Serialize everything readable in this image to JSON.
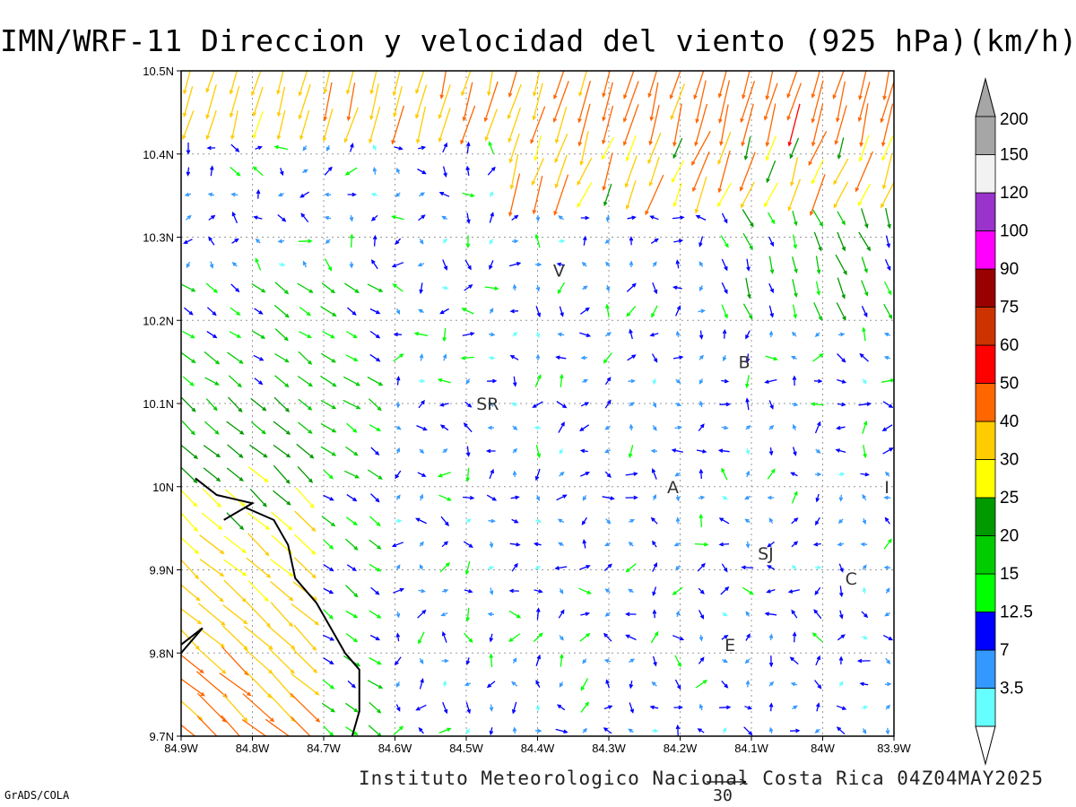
{
  "title": "IMN/WRF-11 Direccion y velocidad del viento (925 hPa)(km/h)",
  "credit": "Instituto Meteorologico Nacional Costa Rica 04Z04MAY2025",
  "software": "GrADS/COLA",
  "reference_vector_label": "30",
  "map": {
    "lon_range": [
      -84.9,
      -83.9
    ],
    "lat_range": [
      9.7,
      10.5
    ],
    "grid": true,
    "x_ticks": [
      "84.9W",
      "84.8W",
      "84.7W",
      "84.6W",
      "84.5W",
      "84.4W",
      "84.3W",
      "84.2W",
      "84.1W",
      "84W",
      "83.9W"
    ],
    "y_ticks": [
      "9.7N",
      "9.8N",
      "9.9N",
      "10N",
      "10.1N",
      "10.2N",
      "10.3N",
      "10.4N",
      "10.5N"
    ],
    "places": [
      {
        "label": "V",
        "lon": -84.37,
        "lat": 10.26
      },
      {
        "label": "SR",
        "lon": -84.47,
        "lat": 10.1
      },
      {
        "label": "B",
        "lon": -84.11,
        "lat": 10.15
      },
      {
        "label": "A",
        "lon": -84.21,
        "lat": 10.0
      },
      {
        "label": "SJ",
        "lon": -84.08,
        "lat": 9.92
      },
      {
        "label": "C",
        "lon": -83.96,
        "lat": 9.89
      },
      {
        "label": "E",
        "lon": -84.13,
        "lat": 9.81
      },
      {
        "label": "I",
        "lon": -83.91,
        "lat": 10.0
      }
    ],
    "coastline": [
      [
        -84.9,
        9.8
      ],
      [
        -84.87,
        9.83
      ],
      [
        -84.9,
        9.81
      ]
    ],
    "coastline_main": [
      [
        -84.88,
        10.01
      ],
      [
        -84.85,
        9.99
      ],
      [
        -84.8,
        9.98
      ],
      [
        -84.84,
        9.96
      ],
      [
        -84.81,
        9.975
      ],
      [
        -84.77,
        9.96
      ],
      [
        -84.75,
        9.93
      ],
      [
        -84.74,
        9.89
      ],
      [
        -84.71,
        9.86
      ],
      [
        -84.67,
        9.8
      ],
      [
        -84.65,
        9.78
      ],
      [
        -84.65,
        9.73
      ],
      [
        -84.66,
        9.7
      ]
    ]
  },
  "legend": {
    "labels": [
      "3.5",
      "7",
      "12.5",
      "15",
      "20",
      "25",
      "30",
      "40",
      "50",
      "60",
      "75",
      "90",
      "100",
      "120",
      "150",
      "200"
    ],
    "colors": [
      "#66ffff",
      "#3399ff",
      "#0000ff",
      "#00ff00",
      "#00cc00",
      "#009900",
      "#ffff00",
      "#ffcc00",
      "#ff6600",
      "#ff0000",
      "#cc3300",
      "#990000",
      "#ff00ff",
      "#9933cc",
      "#f2f2f2",
      "#a6a6a6"
    ]
  },
  "wind_regions": [
    {
      "name": "north-jet",
      "lon": [
        -84.9,
        -83.9
      ],
      "lat": [
        10.42,
        10.5
      ],
      "dir_deg": 255,
      "speed": 35
    },
    {
      "name": "west-coast",
      "lon": [
        -84.9,
        -84.7
      ],
      "lat": [
        9.7,
        10.1
      ],
      "dir_deg": 315,
      "speed": 25
    },
    {
      "name": "central",
      "lon": [
        -84.7,
        -83.9
      ],
      "lat": [
        9.7,
        10.4
      ],
      "dir_deg": 10,
      "speed": 8
    }
  ]
}
